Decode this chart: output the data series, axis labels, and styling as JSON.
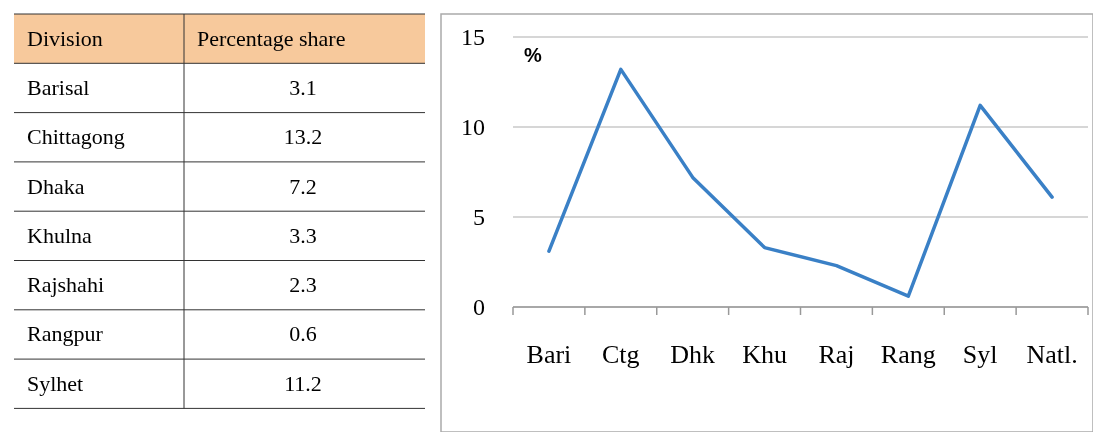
{
  "chart_data": [
    {
      "type": "other",
      "annotations": [
        "Division",
        "Percentage share",
        "Barisal",
        "3.1",
        "Chittagong",
        "13.2",
        "Dhaka",
        "7.2",
        "Khulna",
        "3.3",
        "Rajshahi",
        "2.3",
        "Rangpur",
        "0.6",
        "Sylhet",
        "11.2"
      ]
    },
    {
      "type": "line",
      "ylabel": "%",
      "categories": [
        "Bari",
        "Ctg",
        "Dhk",
        "Khu",
        "Raj",
        "Rang",
        "Syl",
        "Natl."
      ],
      "series": [
        {
          "color": "#3a80c6",
          "values": [
            3.1,
            13.2,
            7.2,
            3.3,
            2.3,
            0.6,
            11.2,
            6.1
          ]
        }
      ],
      "ylim": [
        0,
        15
      ],
      "yticks": [
        0,
        5,
        10,
        15
      ],
      "grid": "y",
      "marker": "none",
      "line_style": "solid"
    }
  ]
}
